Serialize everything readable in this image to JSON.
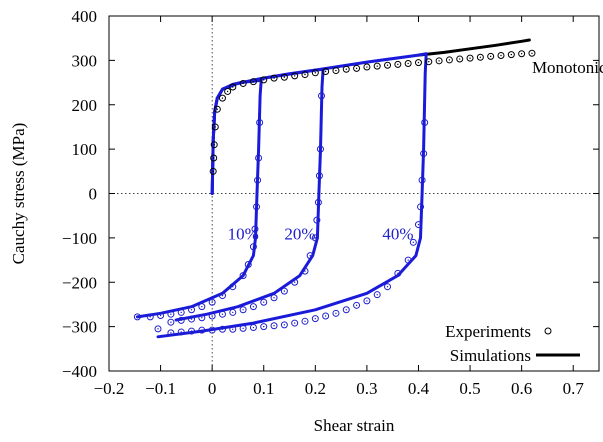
{
  "chart_data": {
    "type": "line",
    "xlabel": "Shear strain",
    "ylabel": "Cauchy stress (MPa)",
    "xlim": [
      -0.2,
      0.75
    ],
    "ylim": [
      -400,
      400
    ],
    "xticks": [
      -0.2,
      -0.1,
      0,
      0.1,
      0.2,
      0.3,
      0.4,
      0.5,
      0.6,
      0.7
    ],
    "xtick_labels": [
      "−0.2",
      "−0.1",
      "0",
      "0.1",
      "0.2",
      "0.3",
      "0.4",
      "0.5",
      "0.6",
      "0.7"
    ],
    "yticks": [
      -400,
      -300,
      -200,
      -100,
      0,
      100,
      200,
      300,
      400
    ],
    "ytick_labels": [
      "−400",
      "−300",
      "−200",
      "−100",
      "0",
      "100",
      "200",
      "300",
      "400"
    ],
    "zero_lines": "dotted",
    "legend_position": "bottom-right",
    "legend": [
      {
        "label": "Experiments",
        "marker": "circle"
      },
      {
        "label": "Simulations",
        "line": "solid"
      }
    ],
    "annotations": [
      {
        "text": "10%",
        "x": 0.03,
        "y": -90,
        "color": "#2020cc"
      },
      {
        "text": "20%",
        "x": 0.14,
        "y": -90,
        "color": "#2020cc"
      },
      {
        "text": "40%",
        "x": 0.33,
        "y": -90,
        "color": "#2020cc"
      },
      {
        "text": "Monotonic",
        "x": 0.62,
        "y": 285,
        "color": "#000000"
      }
    ],
    "series": [
      {
        "kind": "simulation",
        "color": "#000000",
        "points": [
          [
            0.4,
            312
          ],
          [
            0.45,
            318
          ],
          [
            0.5,
            326
          ],
          [
            0.55,
            334
          ],
          [
            0.6,
            343
          ],
          [
            0.615,
            346
          ]
        ]
      },
      {
        "kind": "simulation",
        "color": "#1a1adb",
        "points": [
          [
            0,
            0
          ],
          [
            0.002,
            120
          ],
          [
            0.005,
            185
          ],
          [
            0.01,
            215
          ],
          [
            0.02,
            235
          ],
          [
            0.04,
            246
          ],
          [
            0.06,
            251
          ],
          [
            0.08,
            253
          ],
          [
            0.095,
            255
          ],
          [
            0.093,
            220
          ],
          [
            0.09,
            100
          ],
          [
            0.087,
            0
          ],
          [
            0.084,
            -100
          ],
          [
            0.08,
            -140
          ],
          [
            0.06,
            -185
          ],
          [
            0.02,
            -225
          ],
          [
            -0.04,
            -255
          ],
          [
            -0.1,
            -270
          ],
          [
            -0.145,
            -278
          ]
        ]
      },
      {
        "kind": "simulation",
        "color": "#1a1adb",
        "points": [
          [
            0,
            0
          ],
          [
            0.002,
            120
          ],
          [
            0.005,
            185
          ],
          [
            0.01,
            215
          ],
          [
            0.02,
            235
          ],
          [
            0.05,
            248
          ],
          [
            0.1,
            260
          ],
          [
            0.15,
            270
          ],
          [
            0.2,
            278
          ],
          [
            0.215,
            280
          ],
          [
            0.213,
            240
          ],
          [
            0.21,
            100
          ],
          [
            0.207,
            0
          ],
          [
            0.204,
            -100
          ],
          [
            0.195,
            -140
          ],
          [
            0.17,
            -185
          ],
          [
            0.12,
            -225
          ],
          [
            0.05,
            -255
          ],
          [
            -0.01,
            -272
          ],
          [
            -0.07,
            -285
          ]
        ]
      },
      {
        "kind": "simulation",
        "color": "#1a1adb",
        "points": [
          [
            0,
            0
          ],
          [
            0.002,
            120
          ],
          [
            0.005,
            185
          ],
          [
            0.01,
            215
          ],
          [
            0.02,
            235
          ],
          [
            0.05,
            248
          ],
          [
            0.1,
            260
          ],
          [
            0.2,
            278
          ],
          [
            0.3,
            296
          ],
          [
            0.4,
            312
          ],
          [
            0.415,
            315
          ],
          [
            0.413,
            270
          ],
          [
            0.41,
            100
          ],
          [
            0.407,
            0
          ],
          [
            0.404,
            -100
          ],
          [
            0.395,
            -140
          ],
          [
            0.36,
            -185
          ],
          [
            0.3,
            -225
          ],
          [
            0.2,
            -262
          ],
          [
            0.08,
            -292
          ],
          [
            -0.02,
            -310
          ],
          [
            -0.105,
            -323
          ]
        ]
      },
      {
        "kind": "experiment",
        "marker": "circle",
        "color": "#000000",
        "points": [
          [
            0.002,
            50
          ],
          [
            0.003,
            80
          ],
          [
            0.004,
            110
          ],
          [
            0.006,
            150
          ],
          [
            0.01,
            190
          ],
          [
            0.02,
            215
          ],
          [
            0.03,
            230
          ],
          [
            0.04,
            240
          ],
          [
            0.06,
            248
          ],
          [
            0.08,
            252
          ],
          [
            0.1,
            256
          ],
          [
            0.12,
            260
          ],
          [
            0.14,
            262
          ],
          [
            0.16,
            265
          ],
          [
            0.18,
            268
          ],
          [
            0.2,
            272
          ],
          [
            0.22,
            275
          ],
          [
            0.24,
            277
          ],
          [
            0.26,
            280
          ],
          [
            0.28,
            282
          ],
          [
            0.3,
            285
          ],
          [
            0.32,
            287
          ],
          [
            0.34,
            289
          ],
          [
            0.36,
            291
          ],
          [
            0.38,
            293
          ],
          [
            0.4,
            295
          ],
          [
            0.42,
            297
          ],
          [
            0.44,
            299
          ],
          [
            0.46,
            301
          ],
          [
            0.48,
            303
          ],
          [
            0.5,
            305
          ],
          [
            0.52,
            307
          ],
          [
            0.54,
            309
          ],
          [
            0.56,
            311
          ],
          [
            0.58,
            313
          ],
          [
            0.6,
            315
          ],
          [
            0.62,
            316
          ]
        ]
      },
      {
        "kind": "experiment",
        "marker": "circle",
        "color": "#2020cc",
        "points": [
          [
            0.092,
            160
          ],
          [
            0.09,
            80
          ],
          [
            0.088,
            30
          ],
          [
            0.086,
            -30
          ],
          [
            0.083,
            -80
          ],
          [
            0.08,
            -120
          ],
          [
            0.07,
            -160
          ],
          [
            0.06,
            -185
          ],
          [
            0.04,
            -210
          ],
          [
            0.02,
            -230
          ],
          [
            0.0,
            -245
          ],
          [
            -0.02,
            -255
          ],
          [
            -0.04,
            -262
          ],
          [
            -0.06,
            -268
          ],
          [
            -0.08,
            -272
          ],
          [
            -0.1,
            -275
          ],
          [
            -0.12,
            -278
          ],
          [
            -0.145,
            -278
          ],
          [
            -0.105,
            -305
          ]
        ]
      },
      {
        "kind": "experiment",
        "marker": "circle",
        "color": "#2020cc",
        "points": [
          [
            0.212,
            220
          ],
          [
            0.21,
            100
          ],
          [
            0.208,
            40
          ],
          [
            0.206,
            -20
          ],
          [
            0.203,
            -60
          ],
          [
            0.2,
            -100
          ],
          [
            0.19,
            -140
          ],
          [
            0.18,
            -175
          ],
          [
            0.16,
            -200
          ],
          [
            0.14,
            -220
          ],
          [
            0.12,
            -235
          ],
          [
            0.1,
            -245
          ],
          [
            0.08,
            -255
          ],
          [
            0.06,
            -262
          ],
          [
            0.04,
            -268
          ],
          [
            0.02,
            -272
          ],
          [
            0.0,
            -276
          ],
          [
            -0.02,
            -280
          ],
          [
            -0.04,
            -283
          ],
          [
            -0.06,
            -286
          ],
          [
            -0.08,
            -290
          ]
        ]
      },
      {
        "kind": "experiment",
        "marker": "circle",
        "color": "#2020cc",
        "points": [
          [
            0.412,
            160
          ],
          [
            0.41,
            90
          ],
          [
            0.407,
            30
          ],
          [
            0.404,
            -30
          ],
          [
            0.4,
            -70
          ],
          [
            0.39,
            -110
          ],
          [
            0.38,
            -150
          ],
          [
            0.36,
            -180
          ],
          [
            0.34,
            -210
          ],
          [
            0.32,
            -228
          ],
          [
            0.3,
            -242
          ],
          [
            0.28,
            -252
          ],
          [
            0.26,
            -262
          ],
          [
            0.24,
            -270
          ],
          [
            0.22,
            -276
          ],
          [
            0.2,
            -282
          ],
          [
            0.18,
            -288
          ],
          [
            0.16,
            -292
          ],
          [
            0.14,
            -296
          ],
          [
            0.12,
            -298
          ],
          [
            0.1,
            -300
          ],
          [
            0.08,
            -302
          ],
          [
            0.06,
            -304
          ],
          [
            0.04,
            -306
          ],
          [
            0.02,
            -306
          ],
          [
            0.0,
            -308
          ],
          [
            -0.02,
            -308
          ],
          [
            -0.04,
            -310
          ],
          [
            -0.06,
            -312
          ],
          [
            -0.08,
            -314
          ]
        ]
      }
    ]
  }
}
